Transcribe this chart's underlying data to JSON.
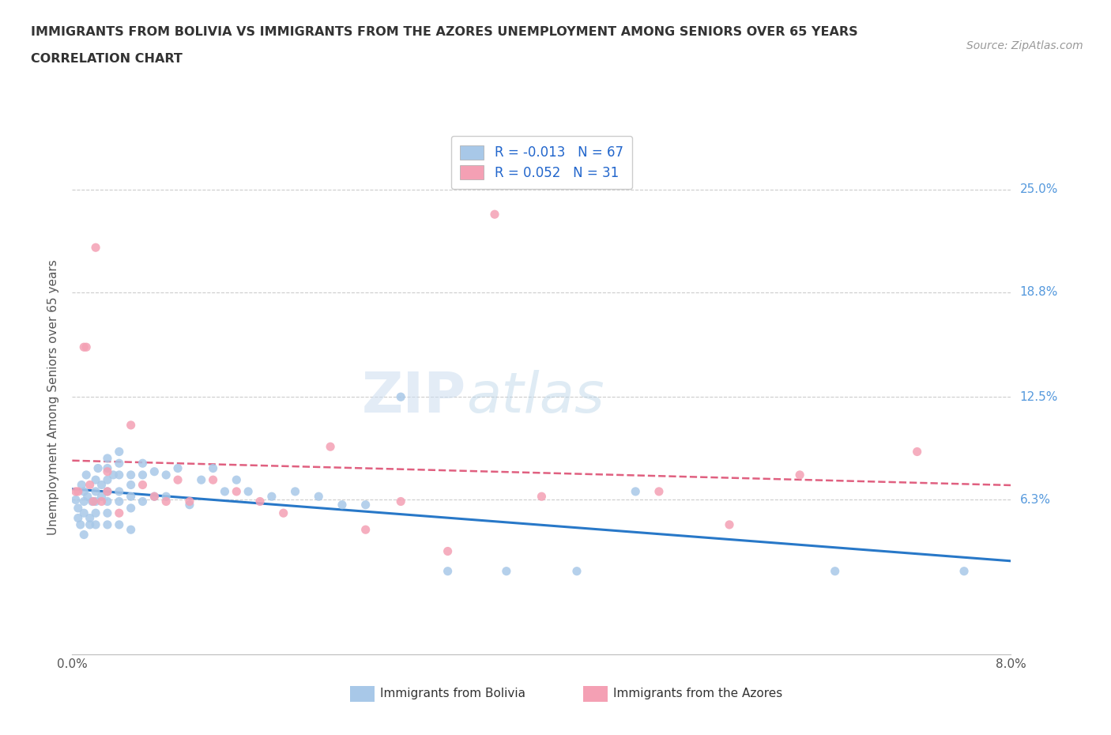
{
  "title_line1": "IMMIGRANTS FROM BOLIVIA VS IMMIGRANTS FROM THE AZORES UNEMPLOYMENT AMONG SENIORS OVER 65 YEARS",
  "title_line2": "CORRELATION CHART",
  "source_text": "Source: ZipAtlas.com",
  "ylabel": "Unemployment Among Seniors over 65 years",
  "xlim": [
    0.0,
    0.08
  ],
  "ylim": [
    -0.03,
    0.28
  ],
  "ytick_vals": [
    0.0,
    0.063,
    0.125,
    0.188,
    0.25
  ],
  "ytick_labels": [
    "",
    "6.3%",
    "12.5%",
    "18.8%",
    "25.0%"
  ],
  "xtick_vals": [
    0.0,
    0.02,
    0.04,
    0.06,
    0.08
  ],
  "xtick_labels": [
    "0.0%",
    "",
    "",
    "",
    "8.0%"
  ],
  "bolivia_color": "#a8c8e8",
  "azores_color": "#f4a0b4",
  "bolivia_trend_color": "#2878c8",
  "azores_trend_color": "#e06080",
  "bolivia_R": -0.013,
  "bolivia_N": 67,
  "azores_R": 0.052,
  "azores_N": 31,
  "watermark_color": "#dce8f4",
  "background_color": "#ffffff",
  "grid_color": "#cccccc",
  "title_color": "#333333",
  "label_color": "#555555",
  "right_label_color": "#5599dd",
  "source_color": "#999999",
  "bolivia_x": [
    0.0003,
    0.0005,
    0.0005,
    0.0007,
    0.0008,
    0.001,
    0.001,
    0.001,
    0.001,
    0.0012,
    0.0013,
    0.0015,
    0.0015,
    0.0017,
    0.002,
    0.002,
    0.002,
    0.002,
    0.002,
    0.0022,
    0.0025,
    0.0025,
    0.003,
    0.003,
    0.003,
    0.003,
    0.003,
    0.003,
    0.003,
    0.0035,
    0.004,
    0.004,
    0.004,
    0.004,
    0.004,
    0.004,
    0.005,
    0.005,
    0.005,
    0.005,
    0.005,
    0.006,
    0.006,
    0.006,
    0.007,
    0.007,
    0.008,
    0.008,
    0.009,
    0.01,
    0.011,
    0.012,
    0.013,
    0.014,
    0.015,
    0.017,
    0.019,
    0.021,
    0.023,
    0.025,
    0.028,
    0.032,
    0.037,
    0.043,
    0.048,
    0.065,
    0.076
  ],
  "bolivia_y": [
    0.063,
    0.058,
    0.052,
    0.048,
    0.072,
    0.068,
    0.062,
    0.055,
    0.042,
    0.078,
    0.065,
    0.052,
    0.048,
    0.062,
    0.075,
    0.068,
    0.062,
    0.055,
    0.048,
    0.082,
    0.072,
    0.065,
    0.088,
    0.082,
    0.075,
    0.068,
    0.062,
    0.055,
    0.048,
    0.078,
    0.092,
    0.085,
    0.078,
    0.068,
    0.062,
    0.048,
    0.078,
    0.072,
    0.065,
    0.058,
    0.045,
    0.085,
    0.078,
    0.062,
    0.08,
    0.065,
    0.078,
    0.065,
    0.082,
    0.06,
    0.075,
    0.082,
    0.068,
    0.075,
    0.068,
    0.065,
    0.068,
    0.065,
    0.06,
    0.06,
    0.125,
    0.02,
    0.02,
    0.02,
    0.068,
    0.02,
    0.02
  ],
  "azores_x": [
    0.0003,
    0.0005,
    0.001,
    0.0012,
    0.0015,
    0.0018,
    0.002,
    0.0025,
    0.003,
    0.003,
    0.004,
    0.005,
    0.006,
    0.007,
    0.008,
    0.009,
    0.01,
    0.012,
    0.014,
    0.016,
    0.018,
    0.022,
    0.025,
    0.028,
    0.032,
    0.036,
    0.04,
    0.05,
    0.056,
    0.062,
    0.072
  ],
  "azores_y": [
    0.068,
    0.068,
    0.155,
    0.155,
    0.072,
    0.062,
    0.215,
    0.062,
    0.08,
    0.068,
    0.055,
    0.108,
    0.072,
    0.065,
    0.062,
    0.075,
    0.062,
    0.075,
    0.068,
    0.062,
    0.055,
    0.095,
    0.045,
    0.062,
    0.032,
    0.235,
    0.065,
    0.068,
    0.048,
    0.078,
    0.092
  ]
}
